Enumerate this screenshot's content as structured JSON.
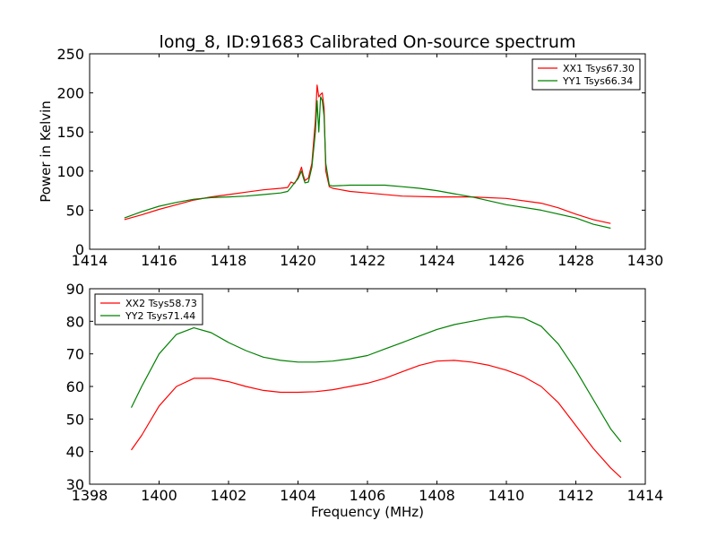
{
  "title": "long_8, ID:91683 Calibrated On-source spectrum",
  "chart_data": [
    {
      "type": "line",
      "ylabel": "Power in Kelvin",
      "xlabel": "",
      "xlim": [
        1414,
        1430
      ],
      "ylim": [
        0,
        250
      ],
      "xticks": [
        "1414",
        "1416",
        "1418",
        "1420",
        "1422",
        "1424",
        "1426",
        "1428",
        "1430"
      ],
      "yticks": [
        "0",
        "50",
        "100",
        "150",
        "200",
        "250"
      ],
      "grid": false,
      "legend_position": "top-right",
      "series": [
        {
          "name": "XX1 Tsys67.30",
          "color": "#ff0000",
          "points": [
            [
              1415.0,
              38
            ],
            [
              1415.5,
              44
            ],
            [
              1416.0,
              51
            ],
            [
              1416.5,
              57
            ],
            [
              1417.0,
              63
            ],
            [
              1417.5,
              67
            ],
            [
              1418.0,
              70
            ],
            [
              1418.5,
              73
            ],
            [
              1419.0,
              76
            ],
            [
              1419.5,
              78
            ],
            [
              1419.7,
              79
            ],
            [
              1419.8,
              86
            ],
            [
              1419.9,
              84
            ],
            [
              1420.0,
              92
            ],
            [
              1420.1,
              105
            ],
            [
              1420.15,
              95
            ],
            [
              1420.2,
              88
            ],
            [
              1420.3,
              91
            ],
            [
              1420.4,
              110
            ],
            [
              1420.5,
              165
            ],
            [
              1420.55,
              210
            ],
            [
              1420.6,
              195
            ],
            [
              1420.65,
              198
            ],
            [
              1420.7,
              200
            ],
            [
              1420.75,
              180
            ],
            [
              1420.8,
              100
            ],
            [
              1420.9,
              80
            ],
            [
              1421.0,
              78
            ],
            [
              1421.5,
              74
            ],
            [
              1422.0,
              72
            ],
            [
              1423.0,
              68
            ],
            [
              1424.0,
              67
            ],
            [
              1425.0,
              67
            ],
            [
              1426.0,
              65
            ],
            [
              1427.0,
              59
            ],
            [
              1427.5,
              53
            ],
            [
              1428.0,
              45
            ],
            [
              1428.5,
              38
            ],
            [
              1429.0,
              33
            ]
          ]
        },
        {
          "name": "YY1 Tsys66.34",
          "color": "#008000",
          "points": [
            [
              1415.0,
              40
            ],
            [
              1415.5,
              48
            ],
            [
              1416.0,
              55
            ],
            [
              1416.5,
              60
            ],
            [
              1417.0,
              64
            ],
            [
              1417.5,
              66
            ],
            [
              1418.0,
              67
            ],
            [
              1418.5,
              68
            ],
            [
              1419.0,
              70
            ],
            [
              1419.5,
              72
            ],
            [
              1419.7,
              74
            ],
            [
              1419.8,
              79
            ],
            [
              1419.9,
              85
            ],
            [
              1420.0,
              90
            ],
            [
              1420.1,
              100
            ],
            [
              1420.15,
              92
            ],
            [
              1420.2,
              85
            ],
            [
              1420.3,
              86
            ],
            [
              1420.4,
              105
            ],
            [
              1420.5,
              150
            ],
            [
              1420.55,
              190
            ],
            [
              1420.6,
              150
            ],
            [
              1420.65,
              195
            ],
            [
              1420.7,
              190
            ],
            [
              1420.75,
              170
            ],
            [
              1420.8,
              110
            ],
            [
              1420.9,
              82
            ],
            [
              1421.0,
              81
            ],
            [
              1421.5,
              82
            ],
            [
              1422.0,
              82
            ],
            [
              1422.5,
              82
            ],
            [
              1423.0,
              80
            ],
            [
              1423.5,
              78
            ],
            [
              1424.0,
              75
            ],
            [
              1424.5,
              71
            ],
            [
              1425.0,
              67
            ],
            [
              1425.5,
              62
            ],
            [
              1426.0,
              57
            ],
            [
              1427.0,
              50
            ],
            [
              1428.0,
              40
            ],
            [
              1428.5,
              32
            ],
            [
              1429.0,
              27
            ]
          ]
        }
      ]
    },
    {
      "type": "line",
      "ylabel": "",
      "xlabel": "Frequency (MHz)",
      "xlim": [
        1398,
        1414
      ],
      "ylim": [
        30,
        90
      ],
      "xticks": [
        "1398",
        "1400",
        "1402",
        "1404",
        "1406",
        "1408",
        "1410",
        "1412",
        "1414"
      ],
      "yticks": [
        "30",
        "40",
        "50",
        "60",
        "70",
        "80",
        "90"
      ],
      "grid": false,
      "legend_position": "top-left",
      "series": [
        {
          "name": "XX2 Tsys58.73",
          "color": "#ff0000",
          "points": [
            [
              1399.2,
              40.5
            ],
            [
              1399.5,
              45
            ],
            [
              1400.0,
              54
            ],
            [
              1400.5,
              60
            ],
            [
              1401.0,
              62.5
            ],
            [
              1401.5,
              62.5
            ],
            [
              1402.0,
              61.5
            ],
            [
              1402.5,
              60
            ],
            [
              1403.0,
              58.8
            ],
            [
              1403.5,
              58.2
            ],
            [
              1404.0,
              58.2
            ],
            [
              1404.5,
              58.4
            ],
            [
              1405.0,
              59
            ],
            [
              1405.5,
              60
            ],
            [
              1406.0,
              61
            ],
            [
              1406.5,
              62.5
            ],
            [
              1407.0,
              64.5
            ],
            [
              1407.5,
              66.5
            ],
            [
              1408.0,
              67.8
            ],
            [
              1408.5,
              68
            ],
            [
              1409.0,
              67.5
            ],
            [
              1409.5,
              66.5
            ],
            [
              1410.0,
              65
            ],
            [
              1410.5,
              63
            ],
            [
              1411.0,
              60
            ],
            [
              1411.5,
              55
            ],
            [
              1412.0,
              48
            ],
            [
              1412.5,
              41
            ],
            [
              1413.0,
              35
            ],
            [
              1413.3,
              32
            ]
          ]
        },
        {
          "name": "YY2 Tsys71.44",
          "color": "#008000",
          "points": [
            [
              1399.2,
              53.5
            ],
            [
              1399.5,
              60
            ],
            [
              1400.0,
              70
            ],
            [
              1400.5,
              76
            ],
            [
              1401.0,
              78
            ],
            [
              1401.5,
              76.5
            ],
            [
              1402.0,
              73.5
            ],
            [
              1402.5,
              71
            ],
            [
              1403.0,
              69
            ],
            [
              1403.5,
              68
            ],
            [
              1404.0,
              67.5
            ],
            [
              1404.5,
              67.5
            ],
            [
              1405.0,
              67.8
            ],
            [
              1405.5,
              68.5
            ],
            [
              1406.0,
              69.5
            ],
            [
              1406.5,
              71.5
            ],
            [
              1407.0,
              73.5
            ],
            [
              1407.5,
              75.5
            ],
            [
              1408.0,
              77.5
            ],
            [
              1408.5,
              79
            ],
            [
              1409.0,
              80
            ],
            [
              1409.5,
              81
            ],
            [
              1410.0,
              81.5
            ],
            [
              1410.5,
              81
            ],
            [
              1411.0,
              78.5
            ],
            [
              1411.5,
              73
            ],
            [
              1412.0,
              65
            ],
            [
              1412.5,
              56
            ],
            [
              1413.0,
              47
            ],
            [
              1413.3,
              43
            ]
          ]
        }
      ]
    }
  ]
}
